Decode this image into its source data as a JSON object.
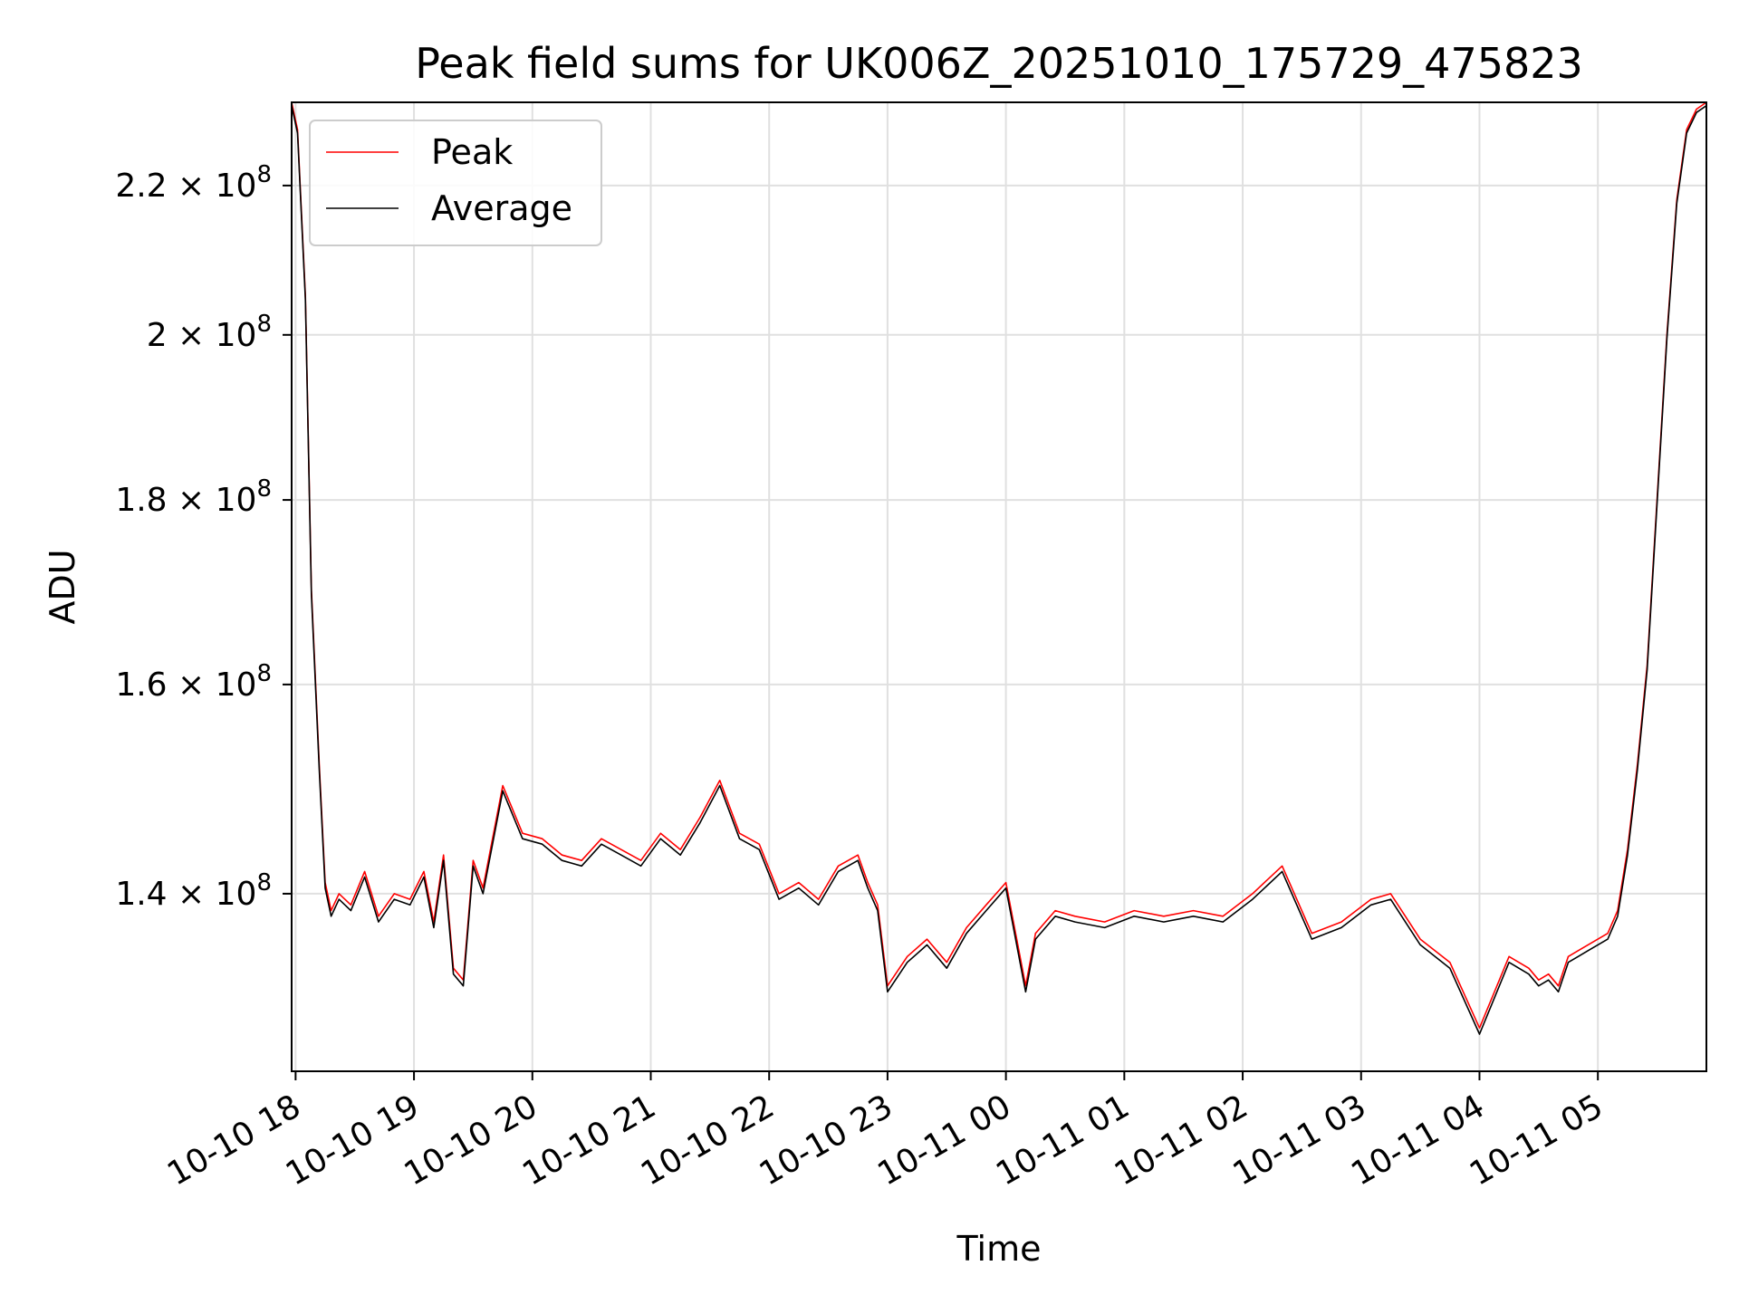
{
  "chart_data": {
    "type": "line",
    "title": "Peak field sums for UK006Z_20251010_175729_475823",
    "xlabel": "Time",
    "ylabel": "ADU",
    "y_scale": "log",
    "grid": true,
    "legend_position": "top-left",
    "xlim": [
      "2025-10-10 17:58",
      "2025-10-11 05:55"
    ],
    "ylim": [
      125000000,
      232000000
    ],
    "x_ticks": [
      "10-10 18",
      "10-10 19",
      "10-10 20",
      "10-10 21",
      "10-10 22",
      "10-10 23",
      "10-11 00",
      "10-11 01",
      "10-11 02",
      "10-11 03",
      "10-11 04",
      "10-11 05"
    ],
    "y_ticks": [
      {
        "value": 140000000,
        "mantissa": "1.4",
        "exp": "8"
      },
      {
        "value": 160000000,
        "mantissa": "1.6",
        "exp": "8"
      },
      {
        "value": 180000000,
        "mantissa": "1.8",
        "exp": "8"
      },
      {
        "value": 200000000,
        "mantissa": "2",
        "exp": "8"
      },
      {
        "value": 220000000,
        "mantissa": "2.2",
        "exp": "8"
      }
    ],
    "x": [
      "2025-10-10 17:58",
      "2025-10-10 18:01",
      "2025-10-10 18:05",
      "2025-10-10 18:08",
      "2025-10-10 18:12",
      "2025-10-10 18:15",
      "2025-10-10 18:18",
      "2025-10-10 18:22",
      "2025-10-10 18:28",
      "2025-10-10 18:35",
      "2025-10-10 18:42",
      "2025-10-10 18:50",
      "2025-10-10 18:58",
      "2025-10-10 19:05",
      "2025-10-10 19:10",
      "2025-10-10 19:15",
      "2025-10-10 19:20",
      "2025-10-10 19:25",
      "2025-10-10 19:30",
      "2025-10-10 19:35",
      "2025-10-10 19:45",
      "2025-10-10 19:55",
      "2025-10-10 20:05",
      "2025-10-10 20:15",
      "2025-10-10 20:25",
      "2025-10-10 20:35",
      "2025-10-10 20:45",
      "2025-10-10 20:55",
      "2025-10-10 21:05",
      "2025-10-10 21:15",
      "2025-10-10 21:25",
      "2025-10-10 21:35",
      "2025-10-10 21:45",
      "2025-10-10 21:55",
      "2025-10-10 22:05",
      "2025-10-10 22:15",
      "2025-10-10 22:25",
      "2025-10-10 22:35",
      "2025-10-10 22:45",
      "2025-10-10 22:50",
      "2025-10-10 22:55",
      "2025-10-10 23:00",
      "2025-10-10 23:10",
      "2025-10-10 23:20",
      "2025-10-10 23:30",
      "2025-10-10 23:40",
      "2025-10-10 23:50",
      "2025-10-11 00:00",
      "2025-10-11 00:10",
      "2025-10-11 00:15",
      "2025-10-11 00:25",
      "2025-10-11 00:35",
      "2025-10-11 00:50",
      "2025-10-11 01:05",
      "2025-10-11 01:20",
      "2025-10-11 01:35",
      "2025-10-11 01:50",
      "2025-10-11 02:05",
      "2025-10-11 02:20",
      "2025-10-11 02:35",
      "2025-10-11 02:50",
      "2025-10-11 03:05",
      "2025-10-11 03:15",
      "2025-10-11 03:30",
      "2025-10-11 03:45",
      "2025-10-11 04:00",
      "2025-10-11 04:15",
      "2025-10-11 04:25",
      "2025-10-11 04:30",
      "2025-10-11 04:35",
      "2025-10-11 04:40",
      "2025-10-11 04:45",
      "2025-10-11 04:50",
      "2025-10-11 04:55",
      "2025-10-11 05:00",
      "2025-10-11 05:05",
      "2025-10-11 05:10",
      "2025-10-11 05:15",
      "2025-10-11 05:20",
      "2025-10-11 05:25",
      "2025-10-11 05:30",
      "2025-10-11 05:35",
      "2025-10-11 05:40",
      "2025-10-11 05:45",
      "2025-10-11 05:50",
      "2025-10-11 05:55"
    ],
    "series": [
      {
        "name": "Peak",
        "color": "#ff0000",
        "values": [
          232000000,
          228000000,
          205000000,
          170000000,
          152000000,
          141000000,
          138500000,
          140000000,
          139000000,
          142000000,
          138000000,
          140000000,
          139500000,
          142000000,
          137500000,
          143500000,
          133500000,
          132500000,
          143000000,
          140500000,
          150000000,
          145500000,
          145000000,
          143500000,
          143000000,
          145000000,
          144000000,
          143000000,
          145500000,
          144000000,
          147000000,
          150500000,
          145500000,
          144500000,
          140000000,
          141000000,
          139500000,
          142500000,
          143500000,
          141000000,
          139000000,
          132000000,
          134500000,
          136000000,
          134000000,
          137000000,
          139000000,
          141000000,
          132000000,
          136500000,
          138500000,
          138000000,
          137500000,
          138500000,
          138000000,
          138500000,
          138000000,
          140000000,
          142500000,
          136500000,
          137500000,
          139500000,
          140000000,
          136000000,
          134000000,
          128500000,
          134500000,
          133500000,
          132500000,
          133000000,
          132000000,
          134500000,
          135000000,
          135500000,
          136000000,
          136500000,
          138500000,
          144000000,
          152000000,
          162000000,
          180000000,
          200000000,
          218000000,
          228000000,
          231000000,
          232000000
        ]
      },
      {
        "name": "Average",
        "color": "#000000",
        "values": [
          231500000,
          227500000,
          204500000,
          169500000,
          151500000,
          140500000,
          138000000,
          139500000,
          138500000,
          141500000,
          137500000,
          139500000,
          139000000,
          141500000,
          137000000,
          143000000,
          133000000,
          132000000,
          142500000,
          140000000,
          149500000,
          145000000,
          144500000,
          143000000,
          142500000,
          144500000,
          143500000,
          142500000,
          145000000,
          143500000,
          146500000,
          150000000,
          145000000,
          144000000,
          139500000,
          140500000,
          139000000,
          142000000,
          143000000,
          140500000,
          138500000,
          131500000,
          134000000,
          135500000,
          133500000,
          136500000,
          138500000,
          140500000,
          131500000,
          136000000,
          138000000,
          137500000,
          137000000,
          138000000,
          137500000,
          138000000,
          137500000,
          139500000,
          142000000,
          136000000,
          137000000,
          139000000,
          139500000,
          135500000,
          133500000,
          128000000,
          134000000,
          133000000,
          132000000,
          132500000,
          131500000,
          134000000,
          134500000,
          135000000,
          135500000,
          136000000,
          138000000,
          143500000,
          151500000,
          161500000,
          179500000,
          199500000,
          217500000,
          227500000,
          230500000,
          231500000
        ]
      }
    ]
  }
}
